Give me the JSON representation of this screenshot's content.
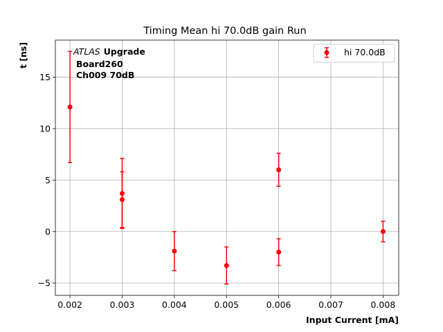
{
  "chart_data": {
    "type": "scatter",
    "title": "Timing Mean hi 70.0dB gain Run",
    "xlabel": "Input Current [mA]",
    "ylabel": "t [ns]",
    "xlim": [
      0.00172,
      0.0083
    ],
    "ylim": [
      -6.2,
      18.6
    ],
    "xticks": [
      0.002,
      0.003,
      0.004,
      0.005,
      0.006,
      0.007,
      0.008
    ],
    "xtick_labels": [
      "0.002",
      "0.003",
      "0.004",
      "0.005",
      "0.006",
      "0.007",
      "0.008"
    ],
    "yticks": [
      -5,
      0,
      5,
      10,
      15
    ],
    "ytick_labels": [
      "−5",
      "0",
      "5",
      "10",
      "15"
    ],
    "grid": true,
    "legend_position": "top-right",
    "series": [
      {
        "name": "hi 70.0dB",
        "color": "#ff0000",
        "marker": "circle",
        "points": [
          {
            "x": 0.002,
            "y": 12.1,
            "err": 5.4
          },
          {
            "x": 0.003,
            "y": 3.7,
            "err": 3.4
          },
          {
            "x": 0.003,
            "y": 3.1,
            "err": 2.7
          },
          {
            "x": 0.004,
            "y": -1.9,
            "err": 1.9
          },
          {
            "x": 0.005,
            "y": -3.3,
            "err": 1.8
          },
          {
            "x": 0.006,
            "y": 6.0,
            "err": 1.6
          },
          {
            "x": 0.006,
            "y": -2.0,
            "err": 1.3
          },
          {
            "x": 0.008,
            "y": 0.0,
            "err": 1.0
          }
        ]
      }
    ],
    "annotation": {
      "italic": "ATLAS",
      "bold_suffix": "Upgrade",
      "line2": "Board260",
      "line3": "Ch009 70dB"
    }
  }
}
